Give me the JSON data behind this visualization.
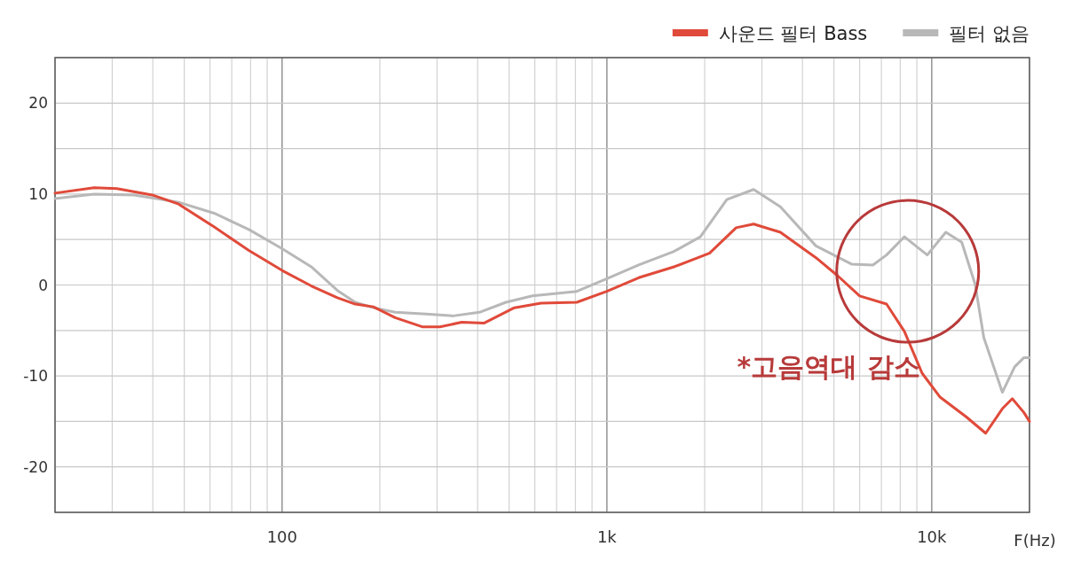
{
  "chart_data": {
    "type": "line",
    "xlabel": "F(Hz)",
    "log": "x",
    "grid": true,
    "legend": "top right",
    "xlim": [
      20,
      20000
    ],
    "ylim": [
      -25,
      25
    ],
    "xticks": [
      {
        "value": 20,
        "label": null
      },
      {
        "value": 30,
        "label": null
      },
      {
        "value": 40,
        "label": null
      },
      {
        "value": 50,
        "label": null
      },
      {
        "value": 60,
        "label": null
      },
      {
        "value": 70,
        "label": null
      },
      {
        "value": 80,
        "label": null
      },
      {
        "value": 90,
        "label": null
      },
      100,
      {
        "value": 200,
        "label": null
      },
      {
        "value": 300,
        "label": null
      },
      {
        "value": 400,
        "label": null
      },
      {
        "value": 500,
        "label": null
      },
      {
        "value": 600,
        "label": null
      },
      {
        "value": 700,
        "label": null
      },
      {
        "value": 800,
        "label": null
      },
      {
        "value": 900,
        "label": null
      },
      {
        "value": 1000,
        "label": "1k"
      },
      {
        "value": 2000,
        "label": null
      },
      {
        "value": 3000,
        "label": null
      },
      {
        "value": 4000,
        "label": null
      },
      {
        "value": 5000,
        "label": null
      },
      {
        "value": 6000,
        "label": null
      },
      {
        "value": 7000,
        "label": null
      },
      {
        "value": 8000,
        "label": null
      },
      {
        "value": 9000,
        "label": null
      },
      {
        "value": 10000,
        "label": "10k"
      },
      {
        "value": 20000,
        "label": null
      }
    ],
    "yticks": [
      {
        "value": -25,
        "label": null
      },
      -20,
      {
        "value": -15,
        "label": null
      },
      -10,
      {
        "value": -5,
        "label": null
      },
      0,
      {
        "value": 5,
        "label": null
      },
      10,
      {
        "value": 15,
        "label": null
      },
      20,
      {
        "value": 25,
        "label": null
      }
    ],
    "annotations": [
      "*고음역대 감소"
    ],
    "series": [
      {
        "name": "사운드 필터 Bass",
        "color": "#e04a3a",
        "x": [
          20,
          26.4,
          31,
          39.8,
          48,
          61.7,
          79,
          100,
          123,
          148,
          168,
          191,
          223,
          270,
          306,
          357,
          418,
          519,
          627,
          808,
          1000,
          1253,
          1610,
          2070,
          2500,
          2830,
          3420,
          4400,
          5140,
          6000,
          7260,
          8240,
          9340,
          10590,
          12770,
          14660,
          16500,
          17700,
          19200,
          20000
        ],
        "values": [
          10.1,
          10.7,
          10.6,
          9.9,
          8.9,
          6.4,
          3.8,
          1.6,
          -0.1,
          -1.4,
          -2.1,
          -2.4,
          -3.6,
          -4.6,
          -4.6,
          -4.1,
          -4.2,
          -2.5,
          -2.0,
          -1.9,
          -0.7,
          0.8,
          2.0,
          3.5,
          6.3,
          6.7,
          5.8,
          3.0,
          1.0,
          -1.2,
          -2.1,
          -5.1,
          -9.7,
          -12.3,
          -14.5,
          -16.3,
          -13.6,
          -12.5,
          -14,
          -15
        ]
      },
      {
        "name": "필터 없음",
        "color": "#b8b8b8",
        "x": [
          20,
          26.4,
          35,
          48,
          61.7,
          79,
          100,
          123,
          148,
          168,
          191,
          223,
          278,
          336,
          405,
          489,
          590,
          808,
          1000,
          1253,
          1610,
          1940,
          2340,
          2830,
          3420,
          4400,
          5660,
          6590,
          7260,
          8240,
          8930,
          9690,
          11050,
          12370,
          13600,
          14470,
          16500,
          18000,
          19200,
          20000
        ],
        "values": [
          9.5,
          10.0,
          9.9,
          9.1,
          7.9,
          6.1,
          4.0,
          2.0,
          -0.6,
          -1.9,
          -2.5,
          -3.0,
          -3.2,
          -3.4,
          -3.0,
          -1.9,
          -1.2,
          -0.7,
          0.7,
          2.2,
          3.7,
          5.3,
          9.4,
          10.5,
          8.6,
          4.3,
          2.3,
          2.2,
          3.3,
          5.3,
          4.3,
          3.3,
          5.8,
          4.7,
          0.1,
          -5.8,
          -11.8,
          -9.0,
          -8.0,
          -8.0
        ]
      }
    ]
  }
}
